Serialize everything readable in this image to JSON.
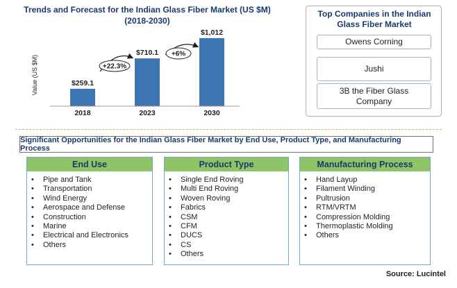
{
  "chart_data": {
    "type": "bar",
    "title": "Trends and Forecast for the Indian Glass Fiber Market (US $M)",
    "subtitle": "(2018-2030)",
    "ylabel": "Value (US $M)",
    "xlabel": "",
    "categories": [
      "2018",
      "2023",
      "2030"
    ],
    "values": [
      259.1,
      710.1,
      1012
    ],
    "value_labels": [
      "$259.1",
      "$710.1",
      "$1,012"
    ],
    "growth_annotations": [
      {
        "from": "2018",
        "to": "2023",
        "label": "+22.3%"
      },
      {
        "from": "2023",
        "to": "2030",
        "label": "+6%"
      }
    ],
    "ylim": [
      0,
      1300
    ],
    "grid": false,
    "bar_color": "#3d74b2"
  },
  "companies": {
    "title": "Top  Companies in the Indian Glass Fiber Market",
    "items": [
      "Owens Corning",
      "Jushi",
      "3B the Fiber Glass Company"
    ]
  },
  "opportunities": {
    "title": "Significant Opportunities for the Indian Glass Fiber Market by End Use, Product Type, and Manufacturing Process",
    "bullet": "•",
    "header_color": "#8dc466",
    "categories": [
      {
        "title": "End Use",
        "items": [
          "Pipe and Tank",
          "Transportation",
          "Wind Energy",
          "Aerospace and Defense",
          "Construction",
          "Marine",
          "Electrical and Electronics",
          "Others"
        ]
      },
      {
        "title": "Product Type",
        "items": [
          "Single End Roving",
          "Multi End Roving",
          "Woven Roving",
          "Fabrics",
          "CSM",
          "CFM",
          "DUCS",
          "CS",
          "Others"
        ]
      },
      {
        "title": "Manufacturing Process",
        "items": [
          "Hand Layup",
          "Filament Winding",
          "Pultrusion",
          "RTM/VRTM",
          "Compression Molding",
          "Thermoplastic Molding",
          "Others"
        ]
      }
    ]
  },
  "source": "Source: Lucintel"
}
